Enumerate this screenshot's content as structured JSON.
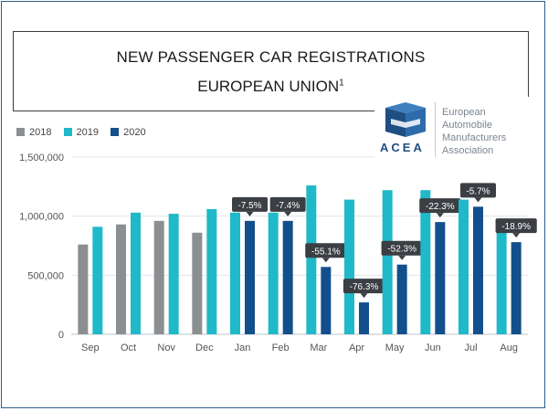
{
  "title": {
    "line1": "NEW PASSENGER CAR REGISTRATIONS",
    "line2": "EUROPEAN UNION",
    "footnote_mark": "1"
  },
  "logo": {
    "acronym": "ACEA",
    "name_lines": [
      "European",
      "Automobile",
      "Manufacturers",
      "Association"
    ]
  },
  "colors": {
    "2018": "#8c8f92",
    "2019": "#1fb9c9",
    "2020": "#134f8c",
    "label_bg": "#3b3f44",
    "axis_text": "#555555",
    "grid": "#e2e5e8"
  },
  "chart_data": {
    "type": "bar",
    "categories": [
      "Sep",
      "Oct",
      "Nov",
      "Dec",
      "Jan",
      "Feb",
      "Mar",
      "Apr",
      "May",
      "Jun",
      "Jul",
      "Aug"
    ],
    "series": [
      {
        "name": "2018",
        "values": [
          760000,
          930000,
          960000,
          860000,
          null,
          null,
          null,
          null,
          null,
          null,
          null,
          null
        ]
      },
      {
        "name": "2019",
        "values": [
          910000,
          1030000,
          1020000,
          1060000,
          1030000,
          1030000,
          1260000,
          1140000,
          1220000,
          1220000,
          1140000,
          950000
        ]
      },
      {
        "name": "2020",
        "values": [
          null,
          null,
          null,
          null,
          960000,
          960000,
          570000,
          270000,
          590000,
          950000,
          1080000,
          780000
        ]
      }
    ],
    "data_labels": [
      "",
      "",
      "",
      "",
      "-7.5%",
      "-7.4%",
      "-55.1%",
      "-76.3%",
      "-52.3%",
      "-22.3%",
      "-5.7%",
      "-18.9%"
    ],
    "y_ticks": [
      0,
      500000,
      1000000,
      1500000
    ],
    "y_tick_labels": [
      "0",
      "500,000",
      "1,000,000",
      "1,500,000"
    ],
    "ylim": [
      0,
      1500000
    ],
    "legend_position": "top-left",
    "xlabel": "",
    "ylabel": ""
  }
}
